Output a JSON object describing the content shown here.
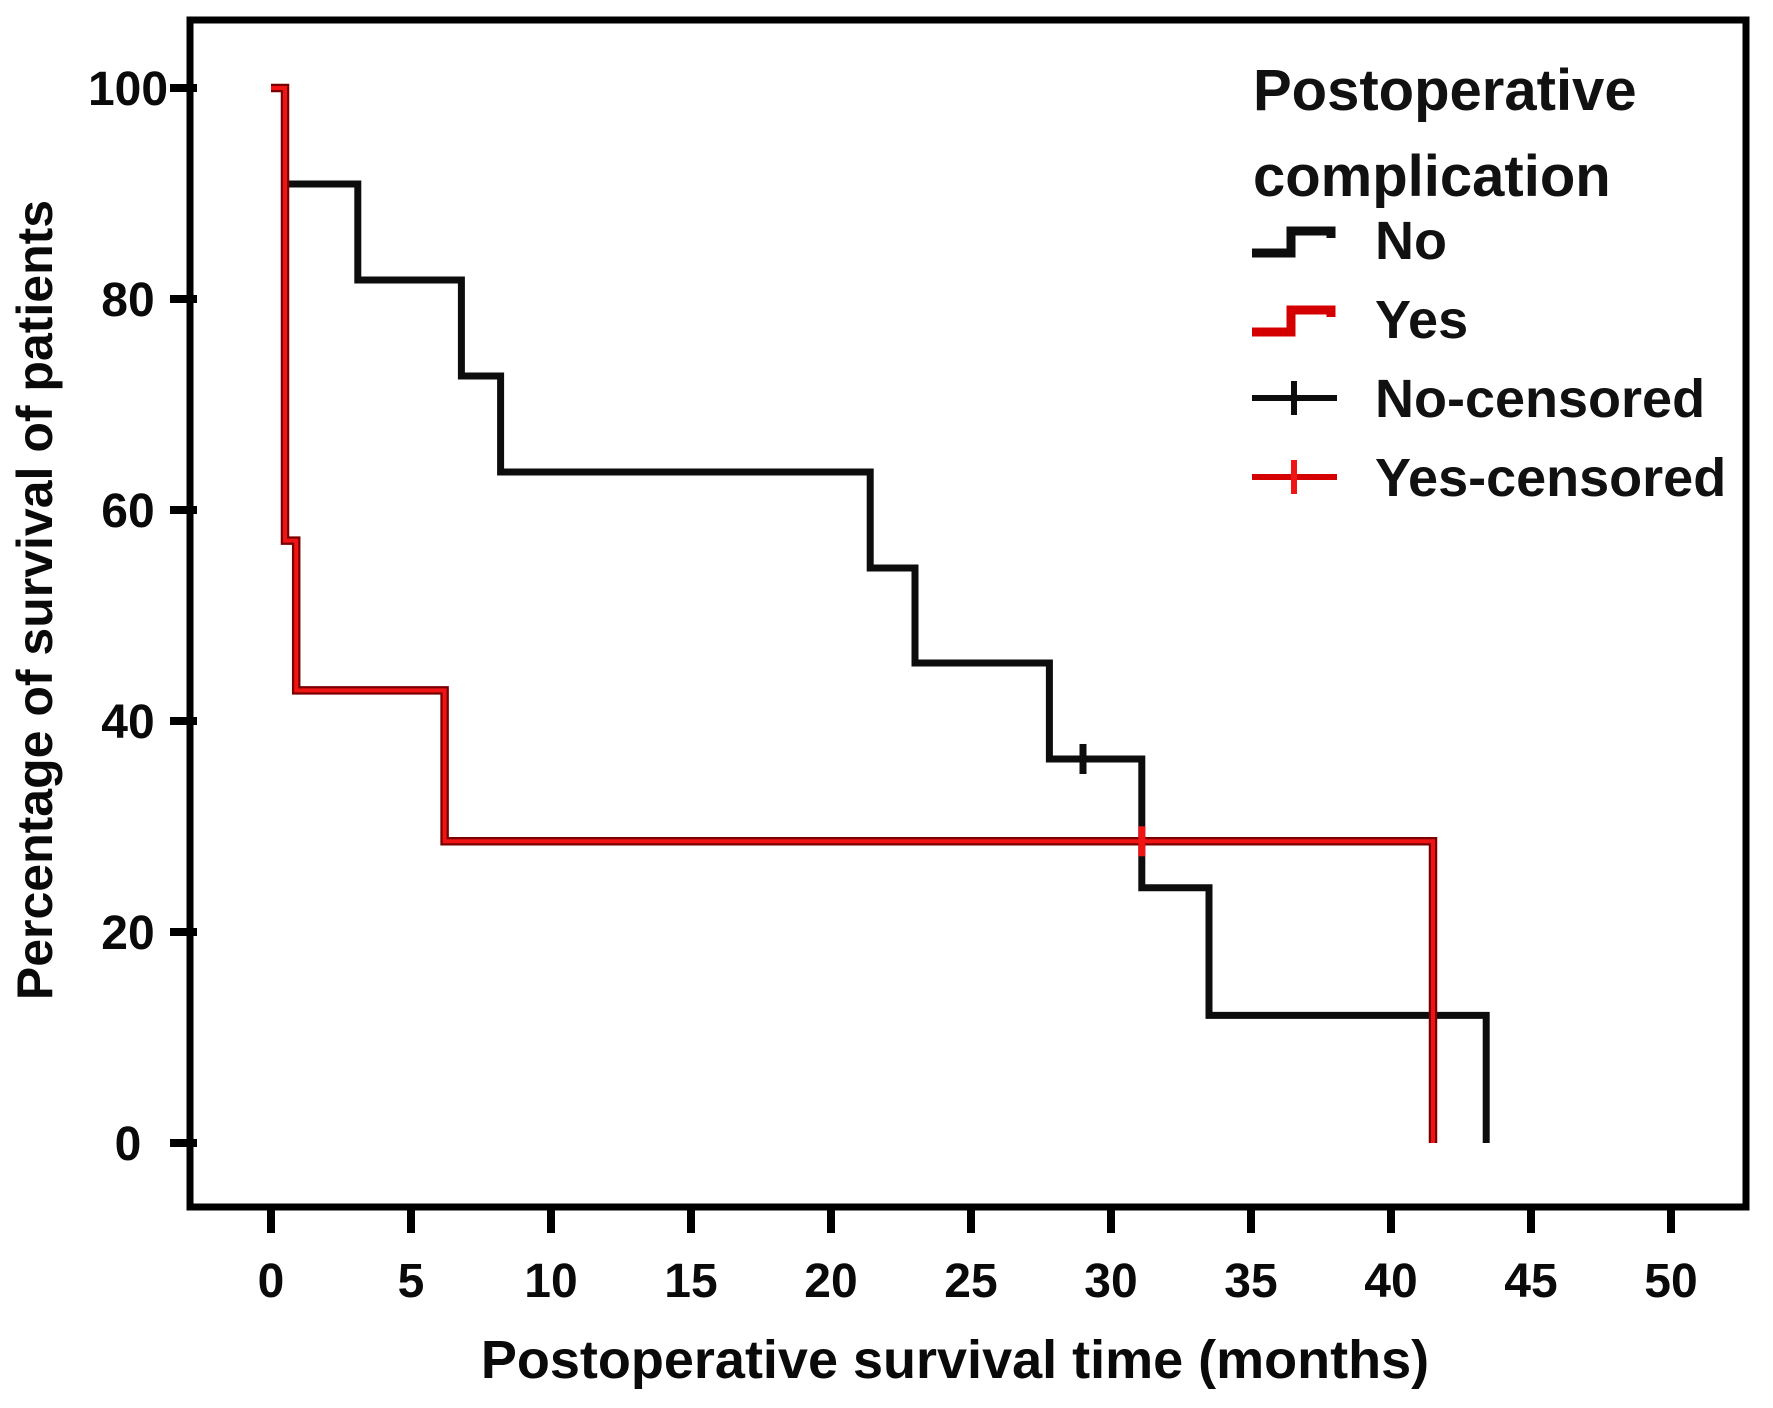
{
  "chart_data": {
    "type": "step",
    "subtype": "kaplan-meier-survival",
    "title": "",
    "xlabel": "Postoperative survival time (months)",
    "ylabel": "Percentage of survival of patients",
    "x_ticks": [
      0,
      5,
      10,
      15,
      20,
      25,
      30,
      35,
      40,
      45,
      50
    ],
    "y_ticks": [
      0,
      20,
      40,
      60,
      80,
      100
    ],
    "xlim": [
      -2.9,
      52.7
    ],
    "ylim": [
      -6,
      106.5
    ],
    "grid": false,
    "legend": {
      "title": "Postoperative complication",
      "title_lines": [
        "Postoperative",
        "complication"
      ],
      "position": "top-right",
      "items": [
        {
          "label": "No",
          "symbol": "step-line",
          "color": "#0d0d0d"
        },
        {
          "label": "Yes",
          "symbol": "step-line",
          "color": "#d40000"
        },
        {
          "label": "No-censored",
          "symbol": "plus",
          "color": "#0d0d0d"
        },
        {
          "label": "Yes-censored",
          "symbol": "plus",
          "color": "#d40000"
        }
      ]
    },
    "series": [
      {
        "name": "No",
        "color": "#0d0d0d",
        "points": [
          [
            0,
            100
          ],
          [
            0.5,
            100
          ],
          [
            0.5,
            90.9
          ],
          [
            3.1,
            90.9
          ],
          [
            3.1,
            81.8
          ],
          [
            6.8,
            81.8
          ],
          [
            6.8,
            72.7
          ],
          [
            8.2,
            72.7
          ],
          [
            8.2,
            63.6
          ],
          [
            21.4,
            63.6
          ],
          [
            21.4,
            54.5
          ],
          [
            23.0,
            54.5
          ],
          [
            23.0,
            45.5
          ],
          [
            27.8,
            45.5
          ],
          [
            27.8,
            36.4
          ],
          [
            31.1,
            36.4
          ],
          [
            31.1,
            24.2
          ],
          [
            33.5,
            24.2
          ],
          [
            33.5,
            12.1
          ],
          [
            43.4,
            12.1
          ],
          [
            43.4,
            0
          ]
        ],
        "censored": [
          [
            29.0,
            36.4
          ]
        ]
      },
      {
        "name": "Yes",
        "color": "#d40000",
        "color_core": "#f01414",
        "color_edge": "#7a0000",
        "points": [
          [
            0,
            100
          ],
          [
            0.5,
            100
          ],
          [
            0.5,
            57.1
          ],
          [
            0.9,
            57.1
          ],
          [
            0.9,
            42.9
          ],
          [
            6.2,
            42.9
          ],
          [
            6.2,
            28.6
          ],
          [
            41.5,
            28.6
          ],
          [
            41.5,
            0
          ]
        ],
        "censored": [
          [
            31.1,
            28.6
          ]
        ]
      }
    ]
  }
}
